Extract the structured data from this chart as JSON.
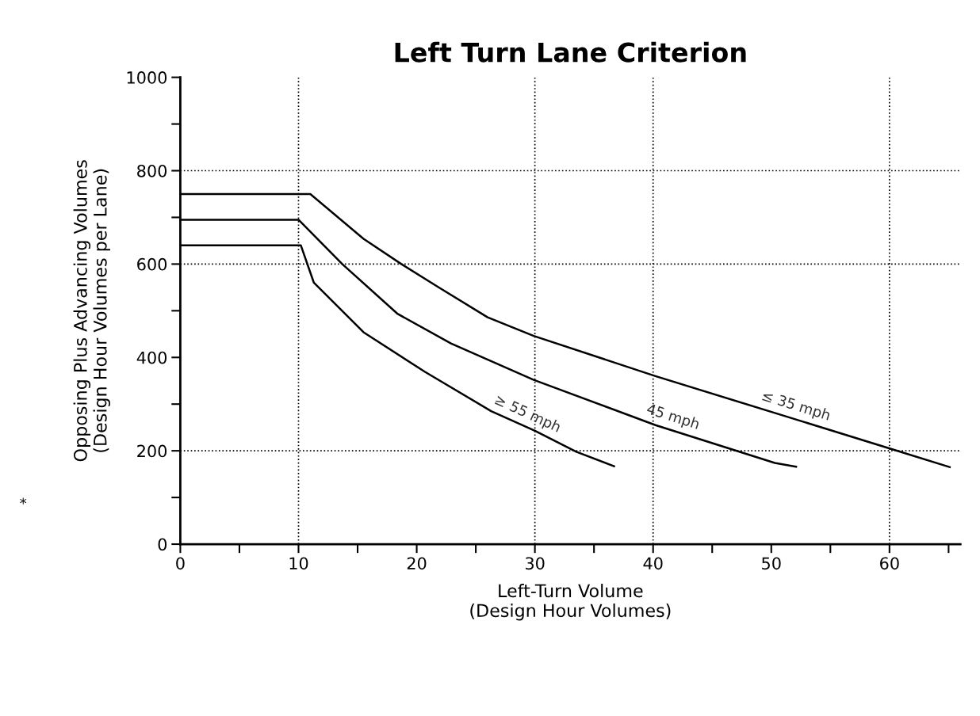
{
  "chart_data": {
    "type": "line",
    "title": "Left Turn Lane Criterion",
    "xlabel": "Left-Turn Volume\n(Design Hour Volumes)",
    "ylabel": "Opposing Plus Advancing Volumes\n(Design Hour Volumes per Lane)",
    "annotations": [
      "*"
    ],
    "series": [
      {
        "name": "≥ 55 mph",
        "color": "#000000",
        "x": [
          0,
          10.2,
          10.2,
          11.3,
          15.5,
          20.7,
          26.3,
          30.0,
          33.5,
          36.7
        ],
        "values": [
          640,
          640,
          640,
          560,
          454,
          369,
          285,
          243,
          198,
          167
        ]
      },
      {
        "name": "45 mph",
        "color": "#000000",
        "x": [
          0,
          10,
          13.7,
          18.4,
          22.9,
          29.9,
          40.2,
          50.3,
          52.1
        ],
        "values": [
          695,
          695,
          600,
          493,
          430,
          352,
          255,
          174,
          166
        ]
      },
      {
        "name": "≤ 35 mph",
        "color": "#000000",
        "x": [
          0,
          11.0,
          15.5,
          18.7,
          21.8,
          26.0,
          29.9,
          40.2,
          50.3,
          60.4,
          65.1
        ],
        "values": [
          750,
          750,
          654,
          600,
          551,
          486,
          446,
          360,
          281,
          202,
          165
        ]
      }
    ],
    "xlim": [
      0,
      66
    ],
    "ylim": [
      0,
      1000
    ],
    "xticks": [
      0,
      {
        "value": 5,
        "label": null
      },
      10,
      {
        "value": 15,
        "label": null
      },
      20,
      {
        "value": 25,
        "label": null
      },
      30,
      {
        "value": 35,
        "label": null
      },
      40,
      {
        "value": 45,
        "label": null
      },
      50,
      {
        "value": 55,
        "label": null
      },
      60,
      {
        "value": 65,
        "label": null
      }
    ],
    "yticks": [
      0,
      {
        "value": 100,
        "label": null
      },
      200,
      {
        "value": 300,
        "label": null
      },
      400,
      {
        "value": 500,
        "label": null
      },
      600,
      {
        "value": 700,
        "label": null
      },
      800,
      {
        "value": 900,
        "label": null
      },
      1000
    ],
    "ref_lines": [
      {
        "axis": "x",
        "value": 10,
        "color": "#000000",
        "line_style": "dotted"
      },
      {
        "axis": "x",
        "value": 30,
        "color": "#000000",
        "line_style": "dotted"
      },
      {
        "axis": "x",
        "value": 40,
        "color": "#000000",
        "line_style": "dotted"
      },
      {
        "axis": "x",
        "value": 60,
        "color": "#000000",
        "line_style": "dotted"
      },
      {
        "axis": "y",
        "value": 200,
        "color": "#000000",
        "line_style": "dotted"
      },
      {
        "axis": "y",
        "value": 600,
        "color": "#000000",
        "line_style": "dotted"
      },
      {
        "axis": "y",
        "value": 800,
        "color": "#000000",
        "line_style": "dotted"
      }
    ],
    "grid": false,
    "legend": false,
    "marker": "none",
    "line_style": "solid"
  }
}
